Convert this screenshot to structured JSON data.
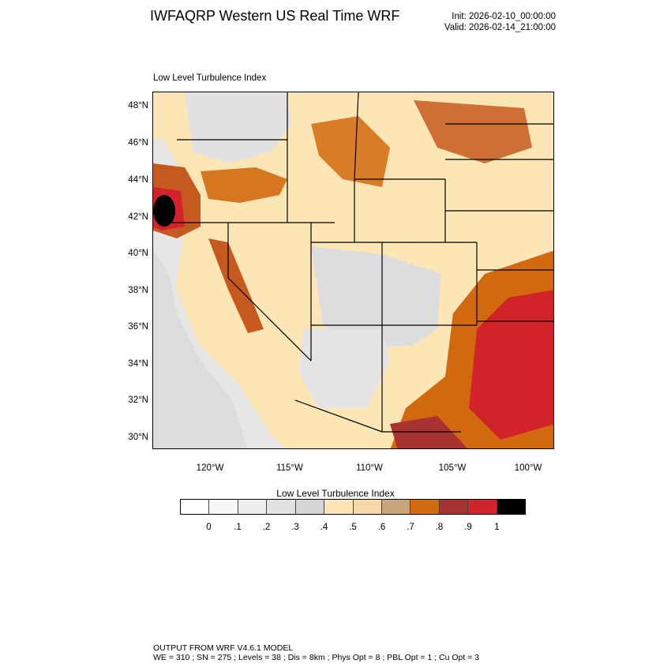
{
  "header": {
    "title": "IWFAQRP Western US Real Time WRF",
    "init": "Init: 2026-02-10_00:00:00",
    "valid": "Valid: 2026-02-14_21:00:00"
  },
  "map": {
    "label": "Low Level Turbulence Index",
    "region": "Western United States",
    "lat_labels": [
      "48°N",
      "46°N",
      "44°N",
      "42°N",
      "40°N",
      "38°N",
      "36°N",
      "34°N",
      "32°N",
      "30°N"
    ],
    "lon_labels": [
      "120°W",
      "115°W",
      "110°W",
      "105°W",
      "100°W"
    ]
  },
  "colorbar": {
    "title": "Low Level Turbulence Index",
    "colors": [
      "#ffffff",
      "#f7f7f7",
      "#eeeeee",
      "#e2e2e2",
      "#d6d6d6",
      "#fde6b5",
      "#f7d8a8",
      "#c9a57f",
      "#d2690e",
      "#a83232",
      "#d2232a",
      "#000000"
    ],
    "labels": [
      "0",
      ".1",
      ".2",
      ".3",
      ".4",
      ".5",
      ".6",
      ".7",
      ".8",
      ".9",
      "1"
    ]
  },
  "footer": {
    "line1": "OUTPUT FROM WRF V4.6.1 MODEL",
    "line2": "WE = 310 ; SN = 275 ; Levels = 38 ; Dis = 8km ; Phys Opt = 8 ; PBL Opt = 1 ; Cu Opt = 3"
  }
}
